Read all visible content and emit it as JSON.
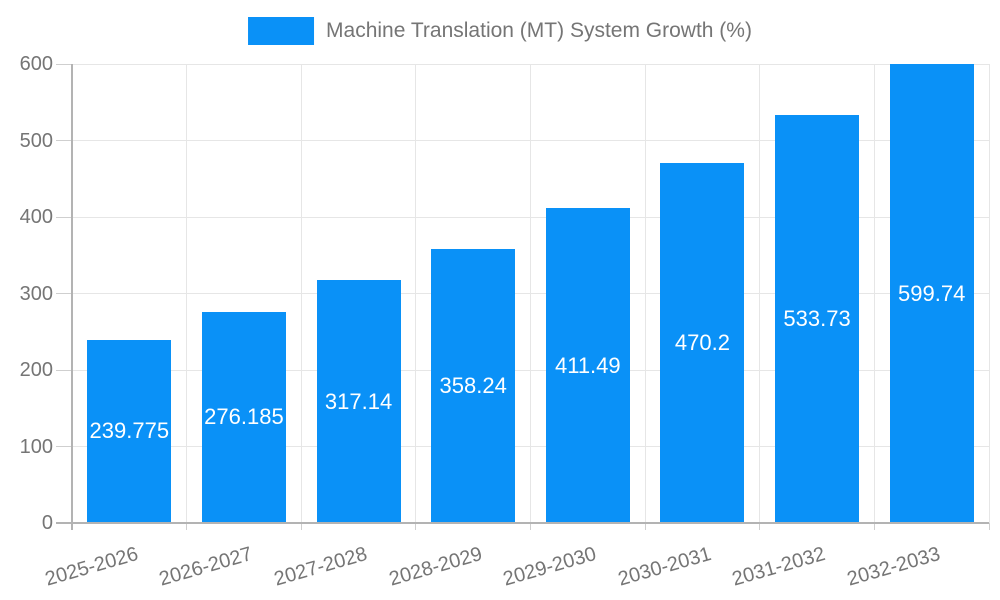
{
  "chart_data": {
    "type": "bar",
    "title": "Machine Translation (MT) System Growth (%)",
    "categories": [
      "2025-2026",
      "2026-2027",
      "2027-2028",
      "2028-2029",
      "2029-2030",
      "2030-2031",
      "2031-2032",
      "2032-2033"
    ],
    "series": [
      {
        "name": "Machine Translation (MT) System Growth (%)",
        "values": [
          239.775,
          276.185,
          317.14,
          358.24,
          411.49,
          470.2,
          533.73,
          599.74
        ]
      }
    ],
    "value_labels": [
      "239.775",
      "276.185",
      "317.14",
      "358.24",
      "411.49",
      "470.2",
      "533.73",
      "599.74"
    ],
    "xlabel": "",
    "ylabel": "",
    "ylim": [
      0,
      600
    ],
    "ytick_step": 100,
    "ytick_labels": [
      "0",
      "100",
      "200",
      "300",
      "400",
      "500",
      "600"
    ],
    "grid": true,
    "legend": {
      "position": "top-center",
      "label": "Machine Translation (MT) System Growth (%)"
    },
    "colors": {
      "bar": "#0a91f7",
      "grid": "#e6e6e6",
      "tick": "#cfcfcf",
      "axis": "#b3b3b3",
      "tick_label": "#757575",
      "value_label": "#ffffff",
      "legend_label": "#757575",
      "background": "#ffffff"
    }
  }
}
